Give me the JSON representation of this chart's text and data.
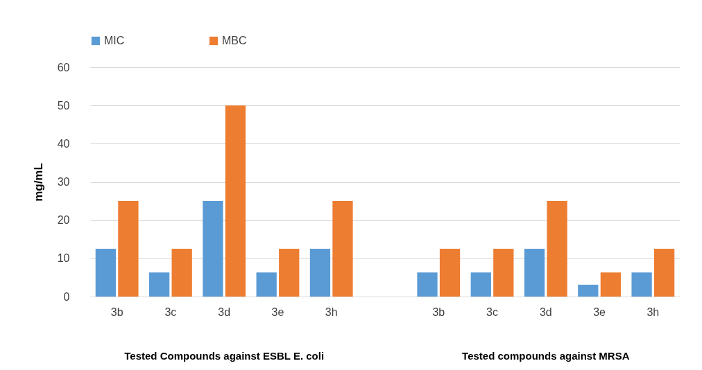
{
  "chart_data": {
    "type": "bar",
    "ylabel": "mg/mL",
    "categories": [
      "3b",
      "3c",
      "3d",
      "3e",
      "3h",
      null,
      "3b",
      "3c",
      "3d",
      "3e",
      "3h"
    ],
    "series": [
      {
        "name": "MIC",
        "color": "#5b9bd5",
        "values": [
          12.5,
          6.3,
          25,
          6.3,
          12.5,
          null,
          6.3,
          6.3,
          12.5,
          3.1,
          6.3
        ]
      },
      {
        "name": "MBC",
        "color": "#ed7d31",
        "values": [
          25,
          12.5,
          50,
          12.5,
          25,
          null,
          12.5,
          12.5,
          25,
          6.3,
          12.5
        ]
      }
    ],
    "ylim": [
      0,
      60
    ],
    "yticks": [
      0,
      10,
      20,
      30,
      40,
      50,
      60
    ],
    "grid": "y",
    "legend": "top",
    "annotations": [
      "Tested Compounds against ESBL E. coli",
      "Tested compounds against MRSA"
    ]
  }
}
